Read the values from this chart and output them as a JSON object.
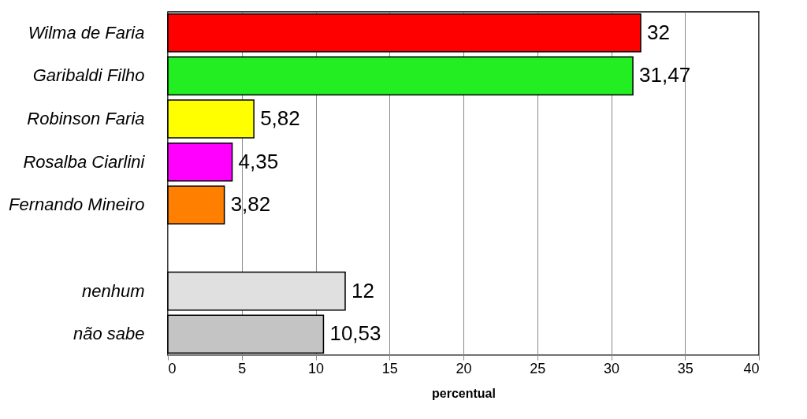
{
  "chart_data": {
    "type": "bar",
    "orientation": "horizontal",
    "xlabel": "percentual",
    "categories": [
      "Wilma de Faria",
      "Garibaldi Filho",
      "Robinson Faria",
      "Rosalba Ciarlini",
      "Fernando Mineiro",
      null,
      "nenhum",
      "não sabe"
    ],
    "values": [
      32,
      31.47,
      5.82,
      4.35,
      3.82,
      null,
      12,
      10.53
    ],
    "value_labels": [
      "32",
      "31,47",
      "5,82",
      "4,35",
      "3,82",
      null,
      "12",
      "10,53"
    ],
    "colors": [
      "#ff0000",
      "#22ee22",
      "#ffff00",
      "#ff00ff",
      "#ff7f00",
      "#ffffff",
      "#e0e0e0",
      "#c4c4c4"
    ],
    "xlim": [
      0,
      40
    ],
    "xticks": [
      0,
      5,
      10,
      15,
      20,
      25,
      30,
      35,
      40
    ],
    "grid": "x"
  }
}
